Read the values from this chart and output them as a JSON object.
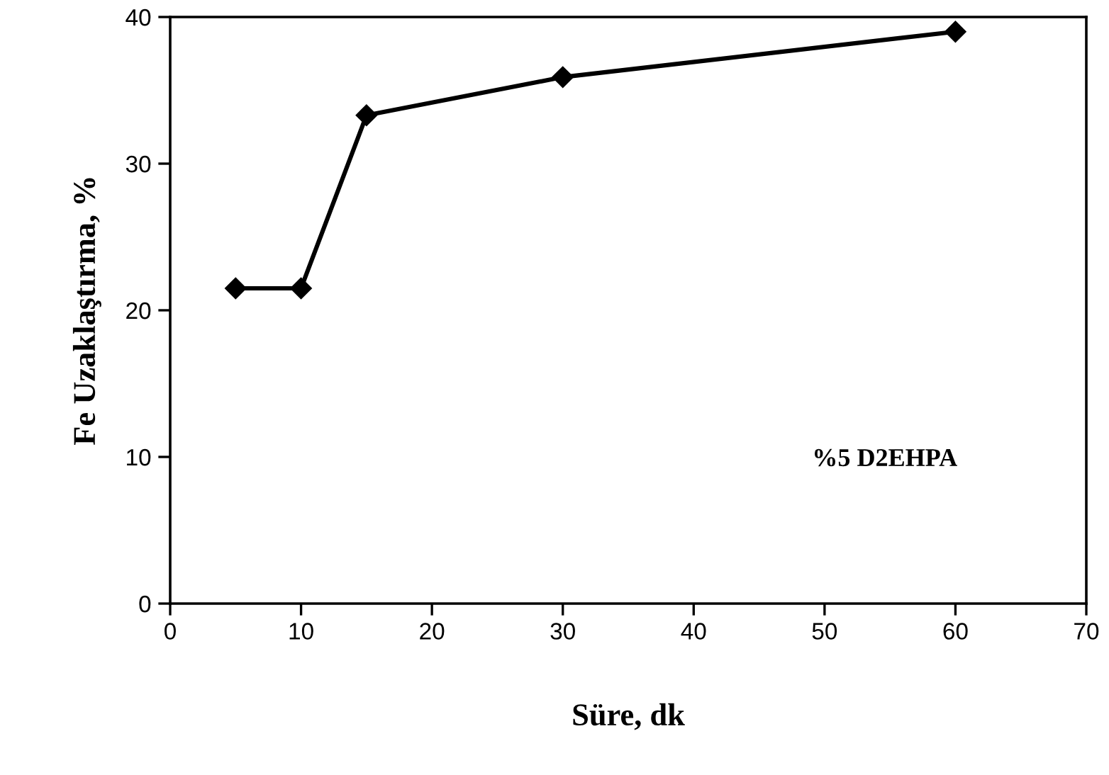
{
  "chart_data": {
    "type": "line",
    "xlabel": "Süre, dk",
    "ylabel": "Fe Uzaklaştırma, %",
    "x": [
      5,
      10,
      15,
      30,
      60
    ],
    "series": [
      {
        "color": "#000000",
        "values": [
          21.5,
          21.5,
          33.3,
          35.9,
          39.0
        ]
      }
    ],
    "xlim": [
      0,
      70
    ],
    "xticks": [
      0,
      10,
      20,
      30,
      40,
      50,
      60,
      70
    ],
    "ylim": [
      0,
      40
    ],
    "yticks": [
      0,
      10,
      20,
      30,
      40
    ],
    "marker": "diamond",
    "line_style": "solid",
    "grid": false,
    "legend": false,
    "annotations": [
      "%5 D2EHPA"
    ]
  }
}
